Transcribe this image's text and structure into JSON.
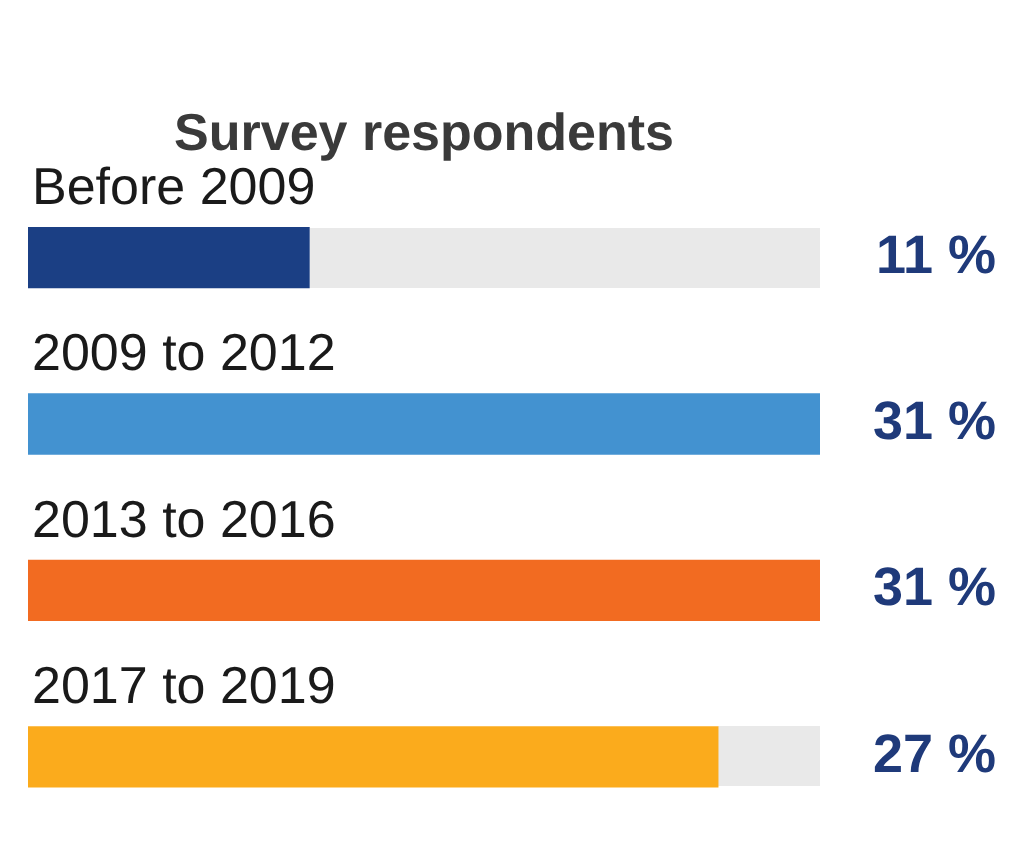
{
  "chart_data": {
    "type": "bar",
    "title": "Survey respondents",
    "orientation": "horizontal",
    "categories": [
      "Before 2009",
      "2009 to 2012",
      "2013 to 2016",
      "2017 to 2019"
    ],
    "values": [
      11,
      31,
      31,
      27
    ],
    "colors": [
      "#1b3f84",
      "#4392d0",
      "#f26b21",
      "#fbab1c"
    ],
    "value_labels": [
      "11 %",
      "31 %",
      "31 %",
      "27 %"
    ],
    "xlim": [
      0,
      31
    ],
    "tick_labels": false
  }
}
